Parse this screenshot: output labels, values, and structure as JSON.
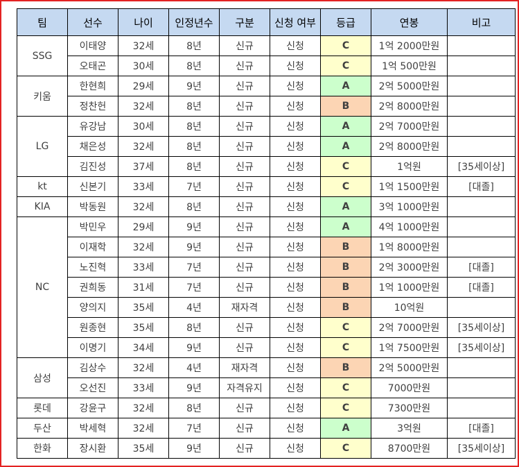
{
  "header": {
    "team": "팀",
    "player": "선수",
    "age": "나이",
    "years": "인정년수",
    "category": "구분",
    "applied": "신청 여부",
    "grade": "등급",
    "salary": "연봉",
    "note": "비고"
  },
  "colors": {
    "frame_border": "#e32222",
    "header_bg": "#c5d9f1",
    "grade_A": "#ccffcc",
    "grade_B": "#fcd5b4",
    "grade_C": "#ffffcc"
  },
  "teams": [
    {
      "team": "SSG",
      "players": [
        {
          "name": "이태양",
          "age": "32세",
          "years": "8년",
          "category": "신규",
          "applied": "신청",
          "grade": "C",
          "salary": "1억 2000만원",
          "note": ""
        },
        {
          "name": "오태곤",
          "age": "30세",
          "years": "8년",
          "category": "신규",
          "applied": "신청",
          "grade": "C",
          "salary": "1억 500만원",
          "note": ""
        }
      ]
    },
    {
      "team": "키움",
      "players": [
        {
          "name": "한현희",
          "age": "29세",
          "years": "9년",
          "category": "신규",
          "applied": "신청",
          "grade": "A",
          "salary": "2억 5000만원",
          "note": ""
        },
        {
          "name": "정찬헌",
          "age": "32세",
          "years": "8년",
          "category": "신규",
          "applied": "신청",
          "grade": "B",
          "salary": "2억 8000만원",
          "note": ""
        }
      ]
    },
    {
      "team": "LG",
      "players": [
        {
          "name": "유강남",
          "age": "30세",
          "years": "8년",
          "category": "신규",
          "applied": "신청",
          "grade": "A",
          "salary": "2억 7000만원",
          "note": ""
        },
        {
          "name": "채은성",
          "age": "32세",
          "years": "8년",
          "category": "신규",
          "applied": "신청",
          "grade": "A",
          "salary": "2억 8000만원",
          "note": ""
        },
        {
          "name": "김진성",
          "age": "37세",
          "years": "8년",
          "category": "신규",
          "applied": "신청",
          "grade": "C",
          "salary": "1억원",
          "note": "[35세이상]"
        }
      ]
    },
    {
      "team": "kt",
      "players": [
        {
          "name": "신본기",
          "age": "33세",
          "years": "7년",
          "category": "신규",
          "applied": "신청",
          "grade": "C",
          "salary": "1억 1500만원",
          "note": "[대졸]"
        }
      ]
    },
    {
      "team": "KIA",
      "players": [
        {
          "name": "박동원",
          "age": "32세",
          "years": "8년",
          "category": "신규",
          "applied": "신청",
          "grade": "A",
          "salary": "3억 1000만원",
          "note": ""
        }
      ]
    },
    {
      "team": "NC",
      "players": [
        {
          "name": "박민우",
          "age": "29세",
          "years": "9년",
          "category": "신규",
          "applied": "신청",
          "grade": "A",
          "salary": "4억 1000만원",
          "note": ""
        },
        {
          "name": "이재학",
          "age": "32세",
          "years": "9년",
          "category": "신규",
          "applied": "신청",
          "grade": "B",
          "salary": "1억 8000만원",
          "note": ""
        },
        {
          "name": "노진혁",
          "age": "33세",
          "years": "7년",
          "category": "신규",
          "applied": "신청",
          "grade": "B",
          "salary": "2억 3000만원",
          "note": "[대졸]"
        },
        {
          "name": "권희동",
          "age": "31세",
          "years": "7년",
          "category": "신규",
          "applied": "신청",
          "grade": "B",
          "salary": "1억 1000만원",
          "note": "[대졸]"
        },
        {
          "name": "양의지",
          "age": "35세",
          "years": "4년",
          "category": "재자격",
          "applied": "신청",
          "grade": "B",
          "salary": "10억원",
          "note": ""
        },
        {
          "name": "원종현",
          "age": "35세",
          "years": "8년",
          "category": "신규",
          "applied": "신청",
          "grade": "C",
          "salary": "2억 7000만원",
          "note": "[35세이상]"
        },
        {
          "name": "이명기",
          "age": "34세",
          "years": "9년",
          "category": "신규",
          "applied": "신청",
          "grade": "C",
          "salary": "1억 7500만원",
          "note": "[35세이상]"
        }
      ]
    },
    {
      "team": "삼성",
      "players": [
        {
          "name": "김상수",
          "age": "32세",
          "years": "4년",
          "category": "재자격",
          "applied": "신청",
          "grade": "B",
          "salary": "2억 5000만원",
          "note": ""
        },
        {
          "name": "오선진",
          "age": "33세",
          "years": "9년",
          "category": "자격유지",
          "applied": "신청",
          "grade": "C",
          "salary": "7000만원",
          "note": ""
        }
      ]
    },
    {
      "team": "롯데",
      "players": [
        {
          "name": "강윤구",
          "age": "32세",
          "years": "8년",
          "category": "신규",
          "applied": "신청",
          "grade": "C",
          "salary": "7300만원",
          "note": ""
        }
      ]
    },
    {
      "team": "두산",
      "players": [
        {
          "name": "박세혁",
          "age": "32세",
          "years": "7년",
          "category": "신규",
          "applied": "신청",
          "grade": "A",
          "salary": "3억원",
          "note": "[대졸]"
        }
      ]
    },
    {
      "team": "한화",
      "players": [
        {
          "name": "장시환",
          "age": "35세",
          "years": "9년",
          "category": "신규",
          "applied": "신청",
          "grade": "C",
          "salary": "8700만원",
          "note": "[35세이상]"
        }
      ]
    }
  ]
}
